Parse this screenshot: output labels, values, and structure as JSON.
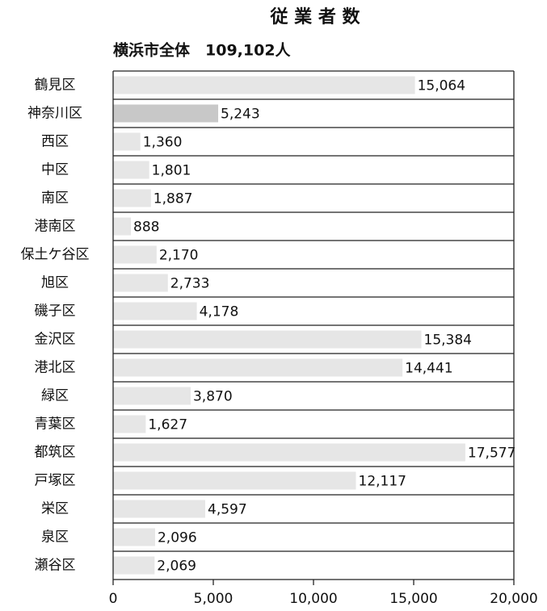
{
  "chart_data": {
    "type": "bar",
    "orientation": "horizontal",
    "title": "従 業 者 数",
    "subtitle": "横浜市全体　109,102人",
    "categories": [
      "鶴見区",
      "神奈川区",
      "西区",
      "中区",
      "南区",
      "港南区",
      "保土ケ谷区",
      "旭区",
      "磯子区",
      "金沢区",
      "港北区",
      "緑区",
      "青葉区",
      "都筑区",
      "戸塚区",
      "栄区",
      "泉区",
      "瀬谷区"
    ],
    "values": [
      15064,
      5243,
      1360,
      1801,
      1887,
      888,
      2170,
      2733,
      4178,
      15384,
      14441,
      3870,
      1627,
      17577,
      12117,
      4597,
      2096,
      2069
    ],
    "value_labels": [
      "15,064",
      "5,243",
      "1,360",
      "1,801",
      "1,887",
      "888",
      "2,170",
      "2,733",
      "4,178",
      "15,384",
      "14,441",
      "3,870",
      "1,627",
      "17,577",
      "12,117",
      "4,597",
      "2,096",
      "2,069"
    ],
    "colors": [
      "#e6e6e6",
      "#c8c8c8",
      "#e6e6e6",
      "#e6e6e6",
      "#e6e6e6",
      "#e6e6e6",
      "#e6e6e6",
      "#e6e6e6",
      "#e6e6e6",
      "#e6e6e6",
      "#e6e6e6",
      "#e6e6e6",
      "#e6e6e6",
      "#e6e6e6",
      "#e6e6e6",
      "#e6e6e6",
      "#e6e6e6",
      "#e6e6e6"
    ],
    "xlim": [
      0,
      20000
    ],
    "xticks": [
      0,
      {
        "value": 5000,
        "label": "5,000"
      },
      {
        "value": 10000,
        "label": "10,000"
      },
      {
        "value": 15000,
        "label": "15,000"
      },
      {
        "value": 20000,
        "label": "20,000"
      }
    ]
  }
}
